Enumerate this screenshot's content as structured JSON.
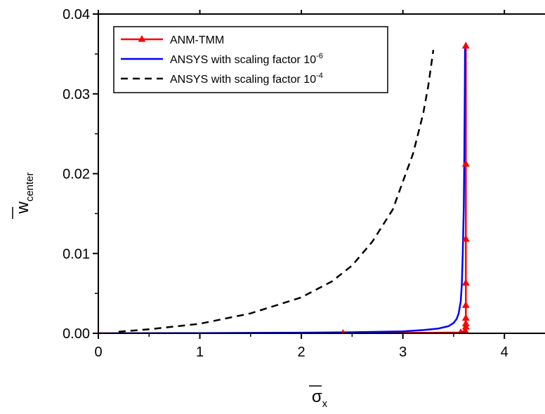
{
  "chart_data": {
    "type": "line",
    "xlabel": {
      "symbol": "σ",
      "subscript": "x"
    },
    "ylabel": {
      "symbol": "w",
      "subscript": "center"
    },
    "xlim": [
      0,
      4.4
    ],
    "ylim": [
      0,
      0.04
    ],
    "xticks": [
      0,
      1,
      2,
      3,
      4
    ],
    "xtick_labels": [
      "0",
      "1",
      "2",
      "3",
      "4"
    ],
    "yticks": [
      0,
      0.01,
      0.02,
      0.03,
      0.04
    ],
    "ytick_labels": [
      "0.00",
      "0.01",
      "0.02",
      "0.03",
      "0.04"
    ],
    "grid": false,
    "legend_position": "top-left",
    "series": [
      {
        "name": "ANM-TMM",
        "label_text": "ANM-TMM",
        "label_sup": "",
        "color": "#ff0000",
        "style": "solid",
        "marker": "triangle",
        "x": [
          0.0,
          2.41,
          3.57,
          3.6,
          3.61,
          3.615,
          3.62,
          3.62,
          3.62,
          3.62,
          3.62,
          3.62,
          3.62,
          3.62
        ],
        "y": [
          0.0,
          0.0,
          0.0001,
          0.0003,
          0.0005,
          0.001,
          0.0019,
          0.0035,
          0.0063,
          0.0118,
          0.0212,
          0.0298,
          0.0355,
          0.036
        ]
      },
      {
        "name": "ANSYS with scaling factor 10^-6",
        "label_text": "ANSYS with scaling factor 10",
        "label_sup": "-6",
        "color": "#0000ff",
        "style": "solid",
        "marker": "none",
        "x": [
          0.0,
          1.0,
          2.0,
          2.5,
          3.0,
          3.2,
          3.35,
          3.45,
          3.5,
          3.53,
          3.55,
          3.57,
          3.58,
          3.59,
          3.6,
          3.605,
          3.61,
          3.613
        ],
        "y": [
          0.0,
          3e-05,
          8e-05,
          0.00013,
          0.00025,
          0.0004,
          0.0006,
          0.0009,
          0.0013,
          0.0018,
          0.0025,
          0.004,
          0.006,
          0.01,
          0.016,
          0.022,
          0.03,
          0.036
        ]
      },
      {
        "name": "ANSYS with scaling factor 10^-4",
        "label_text": "ANSYS with scaling factor 10",
        "label_sup": "-4",
        "color": "#000000",
        "style": "dashed",
        "marker": "none",
        "x": [
          0.2,
          0.5,
          1.0,
          1.5,
          2.0,
          2.3,
          2.5,
          2.7,
          2.9,
          3.0,
          3.1,
          3.2,
          3.25,
          3.3
        ],
        "y": [
          0.0002,
          0.0005,
          0.0012,
          0.0025,
          0.0045,
          0.0065,
          0.0085,
          0.0115,
          0.0155,
          0.019,
          0.0225,
          0.0275,
          0.031,
          0.0355
        ]
      }
    ],
    "markers_at": [
      {
        "x": 2.41,
        "y": 0.0
      },
      {
        "x": 3.57,
        "y": 0.0001
      },
      {
        "x": 3.615,
        "y": 0.0003
      },
      {
        "x": 3.62,
        "y": 0.0008
      },
      {
        "x": 3.62,
        "y": 0.0012
      },
      {
        "x": 3.62,
        "y": 0.0019
      },
      {
        "x": 3.62,
        "y": 0.0035
      },
      {
        "x": 3.62,
        "y": 0.0063
      },
      {
        "x": 3.62,
        "y": 0.0118
      },
      {
        "x": 3.62,
        "y": 0.0212
      },
      {
        "x": 3.62,
        "y": 0.036
      }
    ]
  }
}
